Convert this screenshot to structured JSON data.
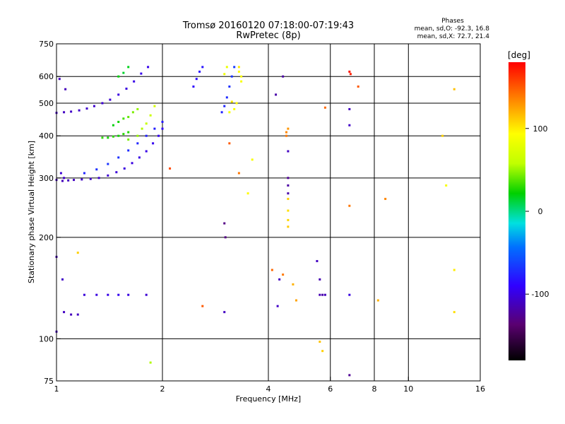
{
  "header": {
    "title_line1": "Tromsø 20160120 07:18:00-07:19:43",
    "title_line2": "RwPretec (8p)",
    "phases_heading": "Phases",
    "phases_o": "mean, sd,O: -92.3, 16.8",
    "phases_x": "mean, sd,X:  72.7, 21.4"
  },
  "chart_data": {
    "type": "scatter",
    "title": "Tromsø 20160120 07:18:00-07:19:43",
    "subtitle": "RwPretec (8p)",
    "xlabel": "Frequency [MHz]",
    "ylabel": "Stationary phase Virtual Height [km]",
    "x_scale": "log",
    "y_scale": "log",
    "xlim": [
      1,
      16
    ],
    "ylim": [
      75,
      750
    ],
    "x_ticks": [
      1,
      2,
      4,
      6,
      8,
      10,
      16
    ],
    "x_tick_labels": [
      "1",
      "2",
      "4",
      "6",
      "8",
      "10",
      "16"
    ],
    "y_ticks": [
      75,
      100,
      200,
      300,
      400,
      500,
      600,
      750
    ],
    "y_tick_labels": [
      "75",
      "100",
      "200",
      "300",
      "400",
      "500",
      "600",
      "750"
    ],
    "grid": true,
    "colorbar": {
      "label": "[deg]",
      "range": [
        -180,
        180
      ],
      "ticks": [
        100,
        0,
        -100
      ],
      "tick_labels": [
        "100",
        "0",
        "-100"
      ]
    },
    "series": [
      {
        "points": [
          [
            1.0,
            296,
            -112
          ],
          [
            1.04,
            294,
            -112
          ],
          [
            1.08,
            295,
            -110
          ],
          [
            1.12,
            296,
            -110
          ],
          [
            1.18,
            297,
            -108
          ],
          [
            1.25,
            298,
            -108
          ],
          [
            1.32,
            300,
            -105
          ],
          [
            1.4,
            305,
            -105
          ],
          [
            1.48,
            312,
            -102
          ],
          [
            1.56,
            320,
            -100
          ],
          [
            1.64,
            332,
            -100
          ],
          [
            1.72,
            345,
            -98
          ],
          [
            1.8,
            360,
            -98
          ],
          [
            1.88,
            380,
            -95
          ],
          [
            1.95,
            400,
            -95
          ],
          [
            2.0,
            420,
            -92
          ],
          [
            1.0,
            468,
            -110
          ],
          [
            1.05,
            470,
            -110
          ],
          [
            1.1,
            472,
            -108
          ],
          [
            1.16,
            476,
            -108
          ],
          [
            1.22,
            482,
            -106
          ],
          [
            1.28,
            490,
            -106
          ],
          [
            1.35,
            500,
            -104
          ],
          [
            1.42,
            512,
            -104
          ],
          [
            1.5,
            530,
            -100
          ],
          [
            1.58,
            552,
            -100
          ],
          [
            1.66,
            580,
            -98
          ],
          [
            1.74,
            612,
            -96
          ],
          [
            1.82,
            640,
            -96
          ],
          [
            1.2,
            310,
            -75
          ],
          [
            1.3,
            318,
            -70
          ],
          [
            1.4,
            330,
            -68
          ],
          [
            1.5,
            345,
            -70
          ],
          [
            1.6,
            362,
            -72
          ],
          [
            1.7,
            380,
            -74
          ],
          [
            1.8,
            400,
            -76
          ],
          [
            1.9,
            420,
            -78
          ],
          [
            2.0,
            440,
            -80
          ],
          [
            2.45,
            560,
            -88
          ],
          [
            2.5,
            590,
            -86
          ],
          [
            2.55,
            620,
            -84
          ],
          [
            2.6,
            640,
            -82
          ],
          [
            2.95,
            470,
            -76
          ],
          [
            3.0,
            490,
            -74
          ],
          [
            3.05,
            520,
            -72
          ],
          [
            3.1,
            560,
            -70
          ],
          [
            3.15,
            600,
            -68
          ],
          [
            3.2,
            640,
            -66
          ],
          [
            3.0,
            220,
            -130
          ],
          [
            3.02,
            200,
            -130
          ],
          [
            3.0,
            120,
            -110
          ],
          [
            4.55,
            300,
            -125
          ],
          [
            4.55,
            285,
            -120
          ],
          [
            4.55,
            270,
            -118
          ],
          [
            4.55,
            360,
            -110
          ],
          [
            5.6,
            135,
            -115
          ],
          [
            5.7,
            135,
            -118
          ],
          [
            5.8,
            135,
            -112
          ],
          [
            5.5,
            170,
            -110
          ],
          [
            5.6,
            150,
            -115
          ],
          [
            1.6,
            135,
            -100
          ],
          [
            1.5,
            135,
            -95
          ],
          [
            1.4,
            135,
            -98
          ],
          [
            1.3,
            135,
            -100
          ],
          [
            1.2,
            135,
            -102
          ],
          [
            1.8,
            135,
            -104
          ],
          [
            1.05,
            120,
            -110
          ],
          [
            1.1,
            118,
            -112
          ],
          [
            1.15,
            118,
            -110
          ],
          [
            1.0,
            105,
            -112
          ],
          [
            6.8,
            480,
            -110
          ],
          [
            6.8,
            430,
            -108
          ],
          [
            6.8,
            78,
            -125
          ],
          [
            6.8,
            135,
            -100
          ],
          [
            4.4,
            600,
            -120
          ],
          [
            4.2,
            530,
            -118
          ],
          [
            4.3,
            150,
            -110
          ],
          [
            4.25,
            125,
            -108
          ],
          [
            1.0,
            175,
            -115
          ],
          [
            1.04,
            150,
            -108
          ],
          [
            1.02,
            590,
            -110
          ],
          [
            1.06,
            550,
            -112
          ],
          [
            1.05,
            300,
            -108
          ],
          [
            1.03,
            310,
            -104
          ]
        ]
      },
      {
        "points": [
          [
            1.35,
            395,
            30
          ],
          [
            1.4,
            395,
            25
          ],
          [
            1.45,
            398,
            30
          ],
          [
            1.5,
            400,
            25
          ],
          [
            1.55,
            405,
            30
          ],
          [
            1.6,
            410,
            28
          ],
          [
            1.45,
            430,
            20
          ],
          [
            1.5,
            440,
            25
          ],
          [
            1.55,
            450,
            35
          ],
          [
            1.6,
            455,
            40
          ],
          [
            1.65,
            470,
            45
          ],
          [
            1.7,
            480,
            50
          ],
          [
            1.6,
            390,
            45
          ],
          [
            1.7,
            400,
            50
          ],
          [
            1.75,
            420,
            55
          ],
          [
            1.8,
            435,
            60
          ],
          [
            1.85,
            460,
            65
          ],
          [
            1.9,
            490,
            70
          ],
          [
            1.5,
            600,
            20
          ],
          [
            1.55,
            615,
            15
          ],
          [
            1.6,
            640,
            18
          ],
          [
            3.3,
            620,
            95
          ],
          [
            3.3,
            640,
            100
          ],
          [
            3.35,
            600,
            92
          ],
          [
            3.35,
            580,
            90
          ],
          [
            3.1,
            470,
            88
          ],
          [
            3.2,
            480,
            92
          ],
          [
            3.25,
            500,
            96
          ],
          [
            3.15,
            505,
            100
          ],
          [
            3.0,
            610,
            85
          ],
          [
            3.05,
            640,
            82
          ],
          [
            4.5,
            410,
            135
          ],
          [
            4.5,
            400,
            140
          ],
          [
            4.55,
            420,
            130
          ],
          [
            4.55,
            260,
            110
          ],
          [
            4.55,
            240,
            105
          ],
          [
            4.55,
            225,
            108
          ],
          [
            4.55,
            215,
            112
          ],
          [
            5.6,
            98,
            115
          ],
          [
            5.7,
            92,
            110
          ],
          [
            5.8,
            485,
            145
          ],
          [
            6.8,
            620,
            175
          ],
          [
            6.85,
            610,
            170
          ],
          [
            6.8,
            248,
            140
          ],
          [
            4.1,
            160,
            145
          ],
          [
            4.4,
            155,
            140
          ],
          [
            4.7,
            145,
            120
          ],
          [
            4.8,
            130,
            125
          ],
          [
            2.1,
            320,
            155
          ],
          [
            2.6,
            125,
            150
          ],
          [
            3.1,
            380,
            150
          ],
          [
            3.3,
            310,
            140
          ],
          [
            7.2,
            560,
            150
          ],
          [
            8.2,
            130,
            120
          ],
          [
            8.6,
            260,
            135
          ],
          [
            12.5,
            400,
            110
          ],
          [
            12.8,
            285,
            90
          ],
          [
            13.5,
            550,
            115
          ],
          [
            13.5,
            160,
            100
          ],
          [
            13.5,
            120,
            105
          ],
          [
            1.15,
            180,
            110
          ],
          [
            1.85,
            85,
            55
          ],
          [
            3.5,
            270,
            95
          ],
          [
            3.6,
            340,
            90
          ]
        ]
      }
    ]
  },
  "axes": {
    "x_label": "Frequency [MHz]",
    "y_label": "Stationary phase Virtual Height [km]"
  }
}
